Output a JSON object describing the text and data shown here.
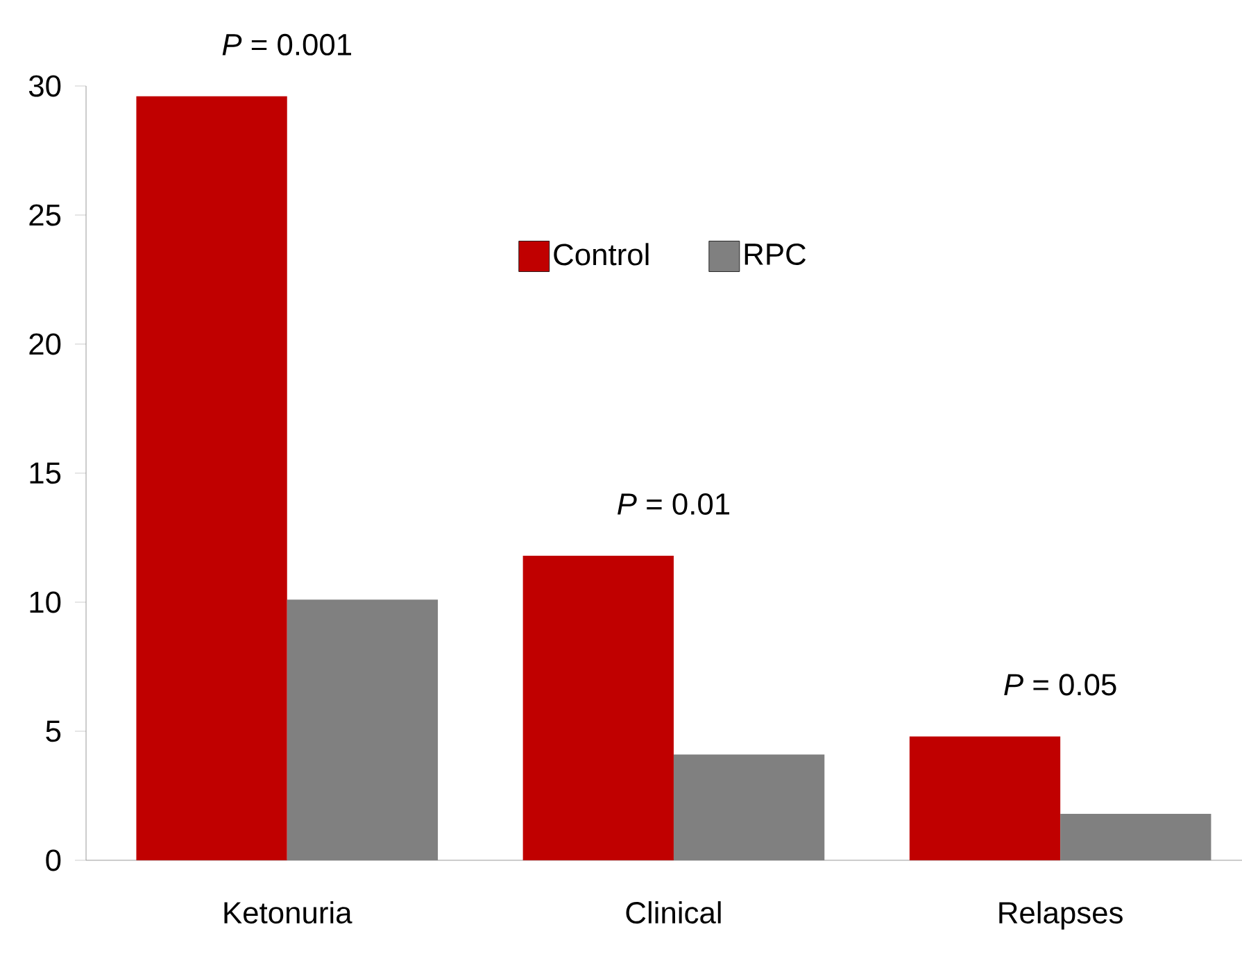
{
  "chart_data": {
    "type": "bar",
    "categories": [
      "Ketonuria",
      "Clinical",
      "Relapses"
    ],
    "series": [
      {
        "name": "Control",
        "color": "#c00000",
        "values": [
          29.6,
          11.8,
          4.8
        ]
      },
      {
        "name": "RPC",
        "color": "#808080",
        "values": [
          10.1,
          4.1,
          1.8
        ]
      }
    ],
    "ylim": [
      0,
      30
    ],
    "yticks": [
      0,
      5,
      10,
      15,
      20,
      25,
      30
    ],
    "grid": false,
    "legend": "top",
    "annotations": [
      "*P* = 0.001",
      "*P* = 0.01",
      "*P* = 0.05"
    ]
  }
}
